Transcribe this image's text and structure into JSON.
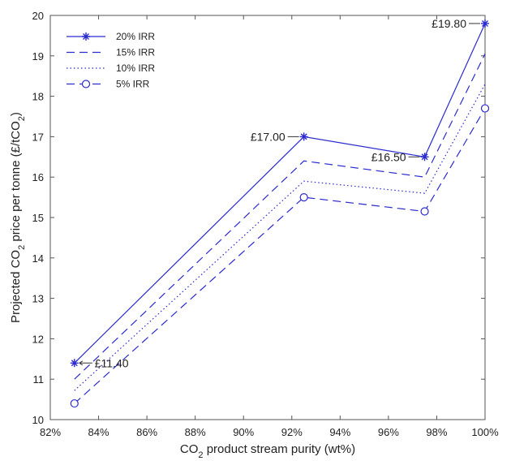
{
  "chart_data": {
    "type": "line",
    "title": "",
    "xlabel_parts": [
      "CO",
      "2",
      " product stream purity (wt%)"
    ],
    "ylabel_parts": [
      "Projected CO",
      "2",
      " price per tonne (£/tCO",
      "2",
      ")"
    ],
    "xlim": [
      82,
      100
    ],
    "ylim": [
      10,
      20
    ],
    "xticks": [
      82,
      84,
      86,
      88,
      90,
      92,
      94,
      96,
      98,
      100
    ],
    "xtick_labels": [
      "82%",
      "84%",
      "86%",
      "88%",
      "90%",
      "92%",
      "94%",
      "96%",
      "98%",
      "100%"
    ],
    "yticks": [
      10,
      11,
      12,
      13,
      14,
      15,
      16,
      17,
      18,
      19,
      20
    ],
    "ytick_labels": [
      "10",
      "11",
      "12",
      "13",
      "14",
      "15",
      "16",
      "17",
      "18",
      "19",
      "20"
    ],
    "grid": false,
    "legend_position": "top-left",
    "x": [
      83,
      92.5,
      97.5,
      100
    ],
    "series": [
      {
        "name": "20% IRR",
        "values": [
          11.4,
          17.0,
          16.5,
          19.8
        ],
        "dash": "solid",
        "marker": "star"
      },
      {
        "name": "15% IRR",
        "values": [
          11.0,
          16.4,
          16.0,
          19.05
        ],
        "dash": "dashed",
        "marker": "none"
      },
      {
        "name": "10% IRR",
        "values": [
          10.72,
          15.9,
          15.6,
          18.3
        ],
        "dash": "dotted",
        "marker": "none"
      },
      {
        "name": "5% IRR",
        "values": [
          10.4,
          15.5,
          15.15,
          17.7
        ],
        "dash": "dashed",
        "marker": "circle"
      }
    ],
    "annotations": [
      {
        "text": "£11.40",
        "x": 83,
        "y": 11.4,
        "side": "right"
      },
      {
        "text": "£17.00",
        "x": 92.5,
        "y": 17.0,
        "side": "left"
      },
      {
        "text": "£16.50",
        "x": 97.5,
        "y": 16.5,
        "side": "left"
      },
      {
        "text": "£19.80",
        "x": 100,
        "y": 19.8,
        "side": "left"
      }
    ],
    "line_color": "#2b2bd0"
  }
}
